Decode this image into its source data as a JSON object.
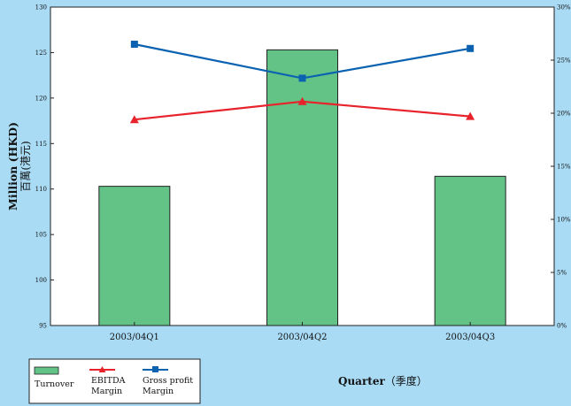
{
  "chart_data": {
    "type": "bar",
    "categories": [
      "2003/04Q1",
      "2003/04Q2",
      "2003/04Q3"
    ],
    "bar_series": {
      "name": "Turnover",
      "values": [
        110.3,
        125.3,
        111.4
      ],
      "color": "#63c387"
    },
    "line_series": [
      {
        "name_lines": [
          "EBITDA",
          "Margin"
        ],
        "values": [
          19.4,
          21.1,
          19.7
        ],
        "color": "#e8222b",
        "marker": "triangle"
      },
      {
        "name_lines": [
          "Gross profit",
          "Margin"
        ],
        "values": [
          26.5,
          23.3,
          26.1
        ],
        "color": "#0a62b1",
        "marker": "square"
      }
    ],
    "y_left": {
      "label": "Million (HKD)",
      "label_cn": "百萬(港元)",
      "ylim": [
        95,
        130
      ],
      "ticks": [
        "95",
        "100",
        "105",
        "110",
        "115",
        "120",
        "125",
        "130"
      ]
    },
    "y_right": {
      "ylim": [
        0,
        30
      ],
      "ticks": [
        "0%",
        "5%",
        "10%",
        "15%",
        "20%",
        "25%",
        "30%"
      ]
    },
    "xlabel": "Quarter",
    "xlabel_cn": "（季度）",
    "grid": false,
    "legend_position": "bottom-left"
  }
}
